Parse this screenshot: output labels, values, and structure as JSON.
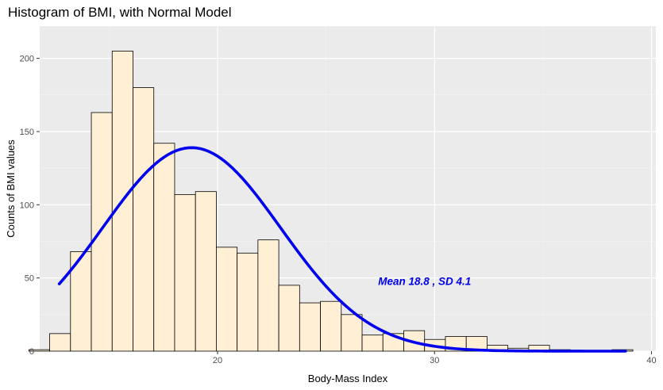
{
  "chart_data": {
    "type": "bar",
    "title": "Histogram of BMI, with Normal Model",
    "xlabel": "Body-Mass Index",
    "ylabel": "Counts of BMI values",
    "xlim": [
      11.8,
      40.2
    ],
    "ylim": [
      0,
      222
    ],
    "x_ticks": [
      20,
      30,
      40
    ],
    "y_ticks": [
      0,
      50,
      100,
      150,
      200
    ],
    "grid": true,
    "bin_width": 0.96,
    "bins": [
      {
        "x0": 11.3,
        "count": 1
      },
      {
        "x0": 12.26,
        "count": 12
      },
      {
        "x0": 13.22,
        "count": 68
      },
      {
        "x0": 14.18,
        "count": 163
      },
      {
        "x0": 15.14,
        "count": 205
      },
      {
        "x0": 16.1,
        "count": 180
      },
      {
        "x0": 17.06,
        "count": 142
      },
      {
        "x0": 18.02,
        "count": 107
      },
      {
        "x0": 18.98,
        "count": 109
      },
      {
        "x0": 19.94,
        "count": 71
      },
      {
        "x0": 20.9,
        "count": 67
      },
      {
        "x0": 21.86,
        "count": 76
      },
      {
        "x0": 22.82,
        "count": 45
      },
      {
        "x0": 23.78,
        "count": 33
      },
      {
        "x0": 24.74,
        "count": 34
      },
      {
        "x0": 25.7,
        "count": 25
      },
      {
        "x0": 26.66,
        "count": 11
      },
      {
        "x0": 27.62,
        "count": 12
      },
      {
        "x0": 28.58,
        "count": 14
      },
      {
        "x0": 29.54,
        "count": 8
      },
      {
        "x0": 30.5,
        "count": 10
      },
      {
        "x0": 31.46,
        "count": 10
      },
      {
        "x0": 32.42,
        "count": 4
      },
      {
        "x0": 33.38,
        "count": 2
      },
      {
        "x0": 34.34,
        "count": 4
      },
      {
        "x0": 35.3,
        "count": 1
      },
      {
        "x0": 36.26,
        "count": 0
      },
      {
        "x0": 37.22,
        "count": 0
      },
      {
        "x0": 38.18,
        "count": 1
      }
    ],
    "normal_curve": {
      "mean": 18.8,
      "sd": 4.1,
      "peak": 139,
      "x_range": [
        12.7,
        38.8
      ]
    },
    "annotation": {
      "text": "Mean 18.8 , SD 4.1",
      "x": 27.4,
      "y": 48
    },
    "colors": {
      "panel": "#ebebeb",
      "grid_major": "#ffffff",
      "grid_minor": "#f4f4f4",
      "bar_fill": "#ffefd5",
      "bar_stroke": "#000000",
      "curve": "#0000ee",
      "annotation": "#0000ee"
    }
  }
}
